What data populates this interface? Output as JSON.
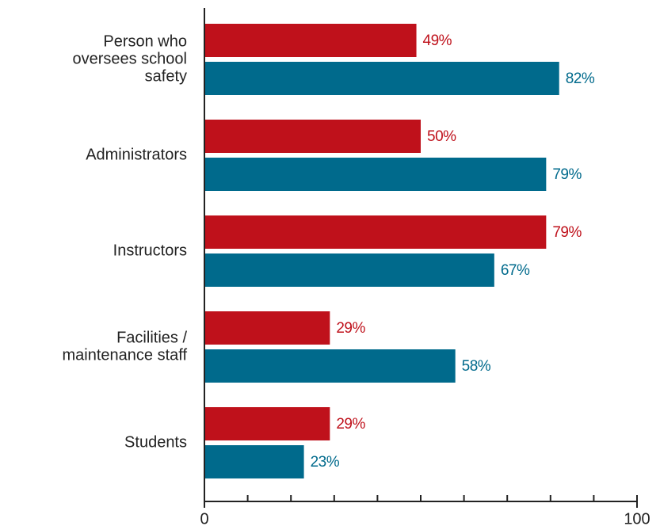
{
  "chart_data": {
    "type": "bar",
    "orientation": "horizontal",
    "categories": [
      [
        "Person who",
        "oversees school",
        "safety"
      ],
      [
        "Administrators"
      ],
      [
        "Instructors"
      ],
      [
        "Facilities /",
        "maintenance staff"
      ],
      [
        "Students"
      ]
    ],
    "series": [
      {
        "color": "#bf111b",
        "values": [
          49,
          50,
          79,
          29,
          29
        ],
        "value_labels": [
          "49%",
          "50%",
          "79%",
          "29%",
          "29%"
        ]
      },
      {
        "color": "#006a8c",
        "values": [
          82,
          79,
          67,
          58,
          23
        ],
        "value_labels": [
          "82%",
          "79%",
          "67%",
          "58%",
          "23%"
        ]
      }
    ],
    "xlim": [
      0,
      100
    ],
    "xticks": [
      0,
      100
    ],
    "xminor_ticks": [
      10,
      20,
      30,
      40,
      50,
      60,
      70,
      80,
      90
    ],
    "grid": false
  }
}
